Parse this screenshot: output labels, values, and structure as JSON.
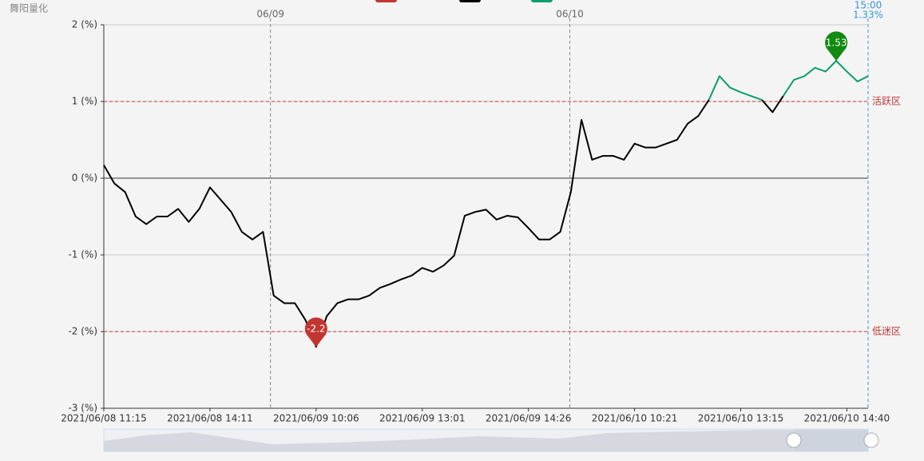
{
  "chart_data": {
    "type": "line",
    "title": "舞阳量化",
    "categories": [
      "2021/06/08 11:15",
      null,
      null,
      null,
      null,
      null,
      null,
      null,
      null,
      null,
      "2021/06/08 14:11",
      null,
      null,
      null,
      null,
      null,
      null,
      null,
      null,
      null,
      "2021/06/09 10:06",
      null,
      null,
      null,
      null,
      null,
      null,
      null,
      null,
      null,
      "2021/06/09 13:01",
      null,
      null,
      null,
      null,
      null,
      null,
      null,
      null,
      null,
      "2021/06/09 14:26",
      null,
      null,
      null,
      null,
      null,
      null,
      null,
      null,
      null,
      "2021/06/10 10:21",
      null,
      null,
      null,
      null,
      null,
      null,
      null,
      null,
      null,
      "2021/06/10 13:15",
      null,
      null,
      null,
      null,
      null,
      null,
      null,
      null,
      null,
      "2021/06/10 14:40",
      null,
      null
    ],
    "series": [
      {
        "color": "#000000",
        "active_color": "#0a9e6b",
        "values": [
          0.17,
          -0.07,
          -0.18,
          -0.5,
          -0.6,
          -0.5,
          -0.5,
          -0.4,
          -0.57,
          -0.4,
          -0.12,
          -0.28,
          -0.44,
          -0.7,
          -0.8,
          -0.7,
          -1.53,
          -1.63,
          -1.63,
          -1.85,
          -2.2,
          -1.8,
          -1.63,
          -1.58,
          -1.58,
          -1.53,
          -1.43,
          -1.38,
          -1.32,
          -1.27,
          -1.17,
          -1.22,
          -1.14,
          -1.01,
          -0.49,
          -0.44,
          -0.41,
          -0.54,
          -0.49,
          -0.51,
          -0.65,
          -0.8,
          -0.8,
          -0.7,
          -0.18,
          0.76,
          0.24,
          0.29,
          0.29,
          0.24,
          0.45,
          0.4,
          0.4,
          0.45,
          0.5,
          0.71,
          0.81,
          1.02,
          1.33,
          1.18,
          1.12,
          1.07,
          1.02,
          0.86,
          1.07,
          1.28,
          1.33,
          1.44,
          1.39,
          1.53,
          1.39,
          1.26,
          1.33
        ]
      }
    ],
    "ylim": [
      -3,
      2
    ],
    "yticks": [
      {
        "value": -3,
        "label": "-3 (%)"
      },
      {
        "value": -2,
        "label": "-2 (%)"
      },
      {
        "value": -1,
        "label": "-1 (%)"
      },
      {
        "value": 0,
        "label": "0 (%)"
      },
      {
        "value": 1,
        "label": "1 (%)"
      },
      {
        "value": 2,
        "label": "2 (%)"
      }
    ],
    "grid": true,
    "mark_lines": [
      {
        "value": 1,
        "label": "活跃区",
        "color": "#c23531"
      },
      {
        "value": -2,
        "label": "低迷区",
        "color": "#c23531"
      }
    ],
    "day_lines": [
      {
        "label": "06/09",
        "at": 15.7
      },
      {
        "label": "06/10",
        "at": 43.9
      }
    ],
    "cursor": {
      "label": "15:00",
      "value": 1.33,
      "value_label": "1.33%",
      "color": "#3398db"
    },
    "pin_colors": {
      "max": "#108a10",
      "min": "#c23531"
    }
  }
}
